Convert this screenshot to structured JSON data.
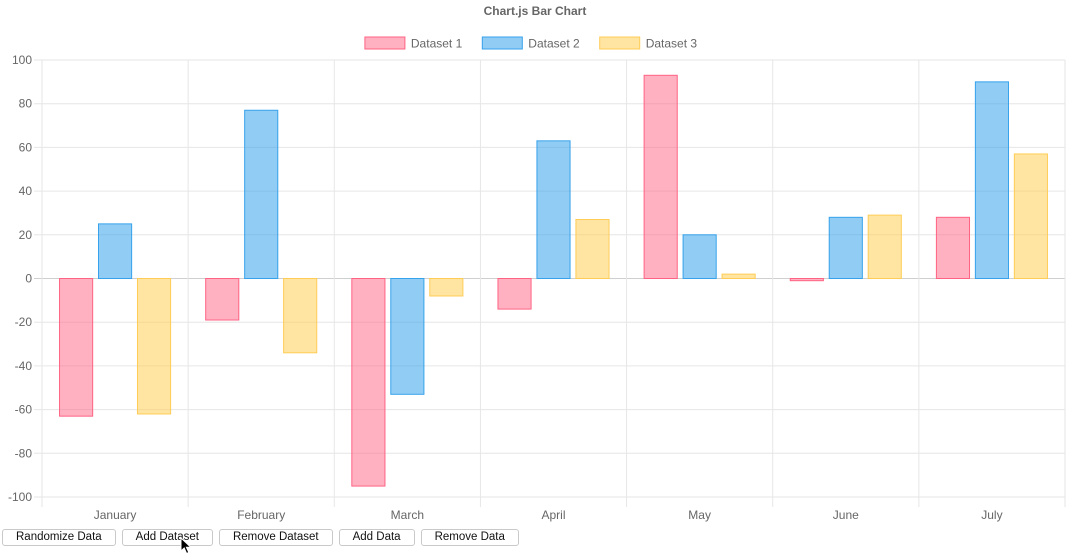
{
  "chart_data": {
    "type": "bar",
    "title": "Chart.js Bar Chart",
    "categories": [
      "January",
      "February",
      "March",
      "April",
      "May",
      "June",
      "July"
    ],
    "series": [
      {
        "name": "Dataset 1",
        "values": [
          -63,
          -19,
          -95,
          -14,
          93,
          -1,
          28
        ],
        "fill": "rgba(255, 99, 132, 0.5)",
        "stroke": "#ff6384"
      },
      {
        "name": "Dataset 2",
        "values": [
          25,
          77,
          -53,
          63,
          20,
          28,
          90
        ],
        "fill": "rgba(54, 162, 235, 0.55)",
        "stroke": "#36a2eb"
      },
      {
        "name": "Dataset 3",
        "values": [
          -62,
          -34,
          -8,
          27,
          2,
          29,
          57
        ],
        "fill": "rgba(255, 205, 86, 0.55)",
        "stroke": "#ffcd56"
      }
    ],
    "ylim": [
      -100,
      100
    ],
    "yticks": [
      100,
      80,
      60,
      40,
      20,
      0,
      -20,
      -40,
      -60,
      -80,
      -100
    ],
    "grid": true,
    "legend": "top-center"
  },
  "controls": {
    "randomize": "Randomize Data",
    "add_dataset": "Add Dataset",
    "remove_dataset": "Remove Dataset",
    "add_data": "Add Data",
    "remove_data": "Remove Data"
  }
}
